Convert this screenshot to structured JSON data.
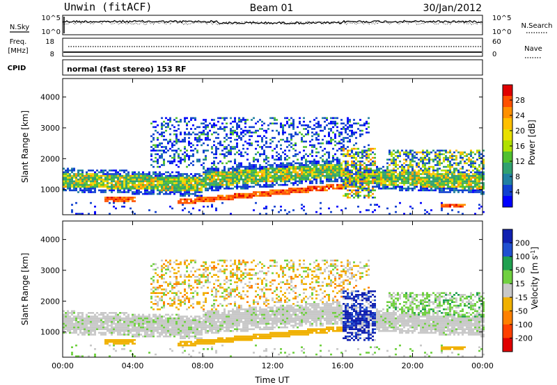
{
  "header": {
    "station": "Unwin (fitACF)",
    "beam": "Beam 01",
    "date": "30/Jan/2012"
  },
  "noise_panel": {
    "left_label": "N.Sky",
    "right_label": "N.Search",
    "left_ticks": [
      "10^5",
      "10^0"
    ],
    "right_ticks": [
      "10^5",
      "10^0"
    ]
  },
  "freq_panel": {
    "left_label_1": "Freq.",
    "left_label_2": "[MHz]",
    "left_ticks": [
      "18",
      "8"
    ],
    "right_label": "Nave",
    "right_ticks": [
      "60",
      "0"
    ]
  },
  "cpid_panel": {
    "label": "CPID",
    "text": "normal (fast stereo) 153 RF"
  },
  "power_colorbar": {
    "label": "Power [dB]",
    "ticks": [
      "28",
      "24",
      "20",
      "16",
      "12",
      "8",
      "4"
    ],
    "colors": [
      "#e00000",
      "#ff5000",
      "#ff9000",
      "#ffc000",
      "#e8e000",
      "#b0e000",
      "#50c030",
      "#30a070",
      "#2080a0",
      "#1040d0",
      "#0000ff"
    ]
  },
  "velocity_colorbar": {
    "label": "Velocity [m s^-1]",
    "ticks": [
      "200",
      "100",
      "50",
      "15",
      "-15",
      "-50",
      "-100",
      "-200"
    ],
    "colors": [
      "#1020b0",
      "#2050d0",
      "#20a050",
      "#70d040",
      "#c8c8c8",
      "#f0b000",
      "#ff8000",
      "#ff4000",
      "#e00000"
    ]
  },
  "chart_data": [
    {
      "type": "heatmap",
      "name": "power",
      "ylabel": "Slant Range [km]",
      "xlim": [
        "00:00",
        "24:00"
      ],
      "ylim": [
        180,
        4600
      ],
      "yticks": [
        1000,
        2000,
        3000,
        4000
      ],
      "xticks": [
        "00:00",
        "04:00",
        "08:00",
        "12:00",
        "16:00",
        "20:00",
        "00:00"
      ],
      "xticks_hours": [
        0,
        4,
        8,
        12,
        16,
        20,
        24
      ]
    },
    {
      "type": "heatmap",
      "name": "velocity",
      "ylabel": "Slant Range [km]",
      "xlabel": "Time UT",
      "xlim": [
        "00:00",
        "24:00"
      ],
      "ylim": [
        180,
        4600
      ],
      "yticks": [
        1000,
        2000,
        3000,
        4000
      ],
      "xticks": [
        "00:00",
        "04:00",
        "08:00",
        "12:00",
        "16:00",
        "20:00",
        "00:00"
      ],
      "xticks_hours": [
        0,
        4,
        8,
        12,
        16,
        20,
        24
      ]
    }
  ]
}
